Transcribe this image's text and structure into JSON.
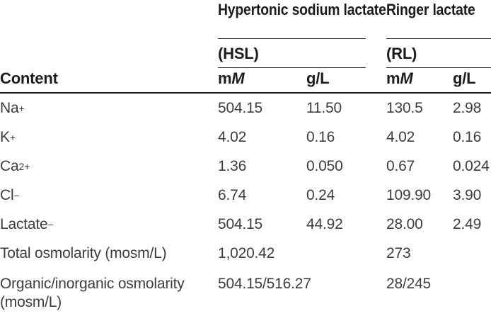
{
  "colors": {
    "background": "#ffffff",
    "header_text": "#1c1c1c",
    "body_text": "#3d3d3d",
    "rule_thin": "#2b2b2b",
    "rule_thick": "#161616"
  },
  "table": {
    "content_header": "Content",
    "groups": [
      {
        "title": "Hypertonic sodium lactate",
        "abbr": "(HSL)"
      },
      {
        "title": "Ringer lactate",
        "abbr": "(RL)"
      }
    ],
    "unit_mm": {
      "prefix": "m",
      "symbol": "M"
    },
    "unit_gl": "g/L",
    "ion_rows": [
      {
        "label_base": "Na",
        "label_sup": "+",
        "hsl_mm": "504.15",
        "hsl_gl": "11.50",
        "rl_mm": "130.5",
        "rl_gl": "2.98"
      },
      {
        "label_base": "K",
        "label_sup": "+",
        "hsl_mm": "4.02",
        "hsl_gl": "0.16",
        "rl_mm": "4.02",
        "rl_gl": "0.16"
      },
      {
        "label_base": "Ca",
        "label_sup": "2+",
        "hsl_mm": "1.36",
        "hsl_gl": "0.050",
        "rl_mm": "0.67",
        "rl_gl": "0.024"
      },
      {
        "label_base": "Cl",
        "label_sup": "−",
        "hsl_mm": "6.74",
        "hsl_gl": "0.24",
        "rl_mm": "109.90",
        "rl_gl": "3.90"
      },
      {
        "label_base": "Lactate",
        "label_sup": "−",
        "hsl_mm": "504.15",
        "hsl_gl": "44.92",
        "rl_mm": "28.00",
        "rl_gl": "2.49"
      }
    ],
    "summary_rows": [
      {
        "label": "Total osmolarity (mosm/L)",
        "hsl": "1,020.42",
        "rl": "273"
      },
      {
        "label": "Organic/inorganic osmolarity (mosm/L)",
        "hsl": "504.15/516.27",
        "rl": "28/245"
      }
    ]
  }
}
